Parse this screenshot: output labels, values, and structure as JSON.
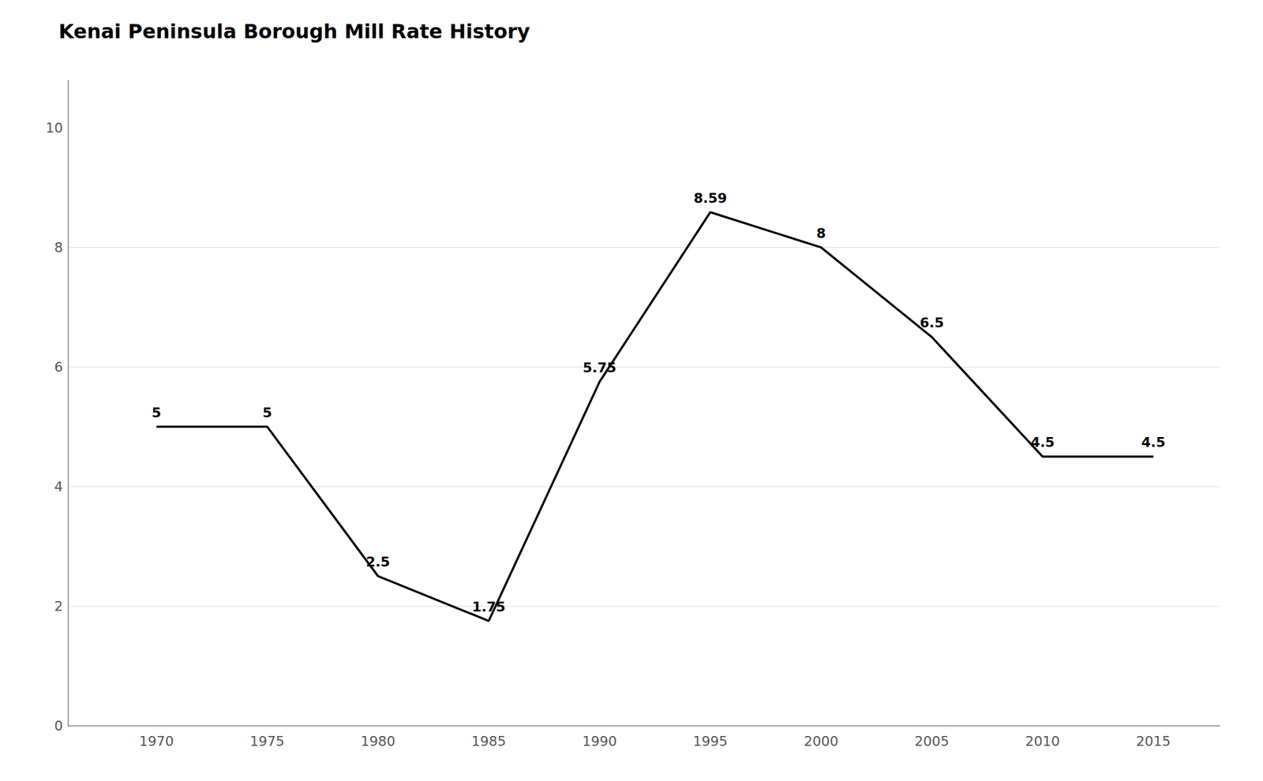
{
  "chart_data": {
    "type": "line",
    "title": "Kenai Peninsula Borough Mill Rate History",
    "x": [
      1970,
      1975,
      1980,
      1985,
      1990,
      1995,
      2000,
      2005,
      2010,
      2015
    ],
    "values": [
      5,
      5,
      2.5,
      1.75,
      5.75,
      8.59,
      8,
      6.5,
      4.5,
      4.5
    ],
    "color": "#000000",
    "data_labels": true,
    "xlim": [
      1966,
      2018
    ],
    "xticks": [
      1970,
      1975,
      1980,
      1985,
      1990,
      1995,
      2000,
      2005,
      2010,
      2015
    ],
    "ylim": [
      0,
      10.8
    ],
    "yticks": [
      0,
      2,
      4,
      6,
      8,
      10
    ],
    "grid": true
  }
}
